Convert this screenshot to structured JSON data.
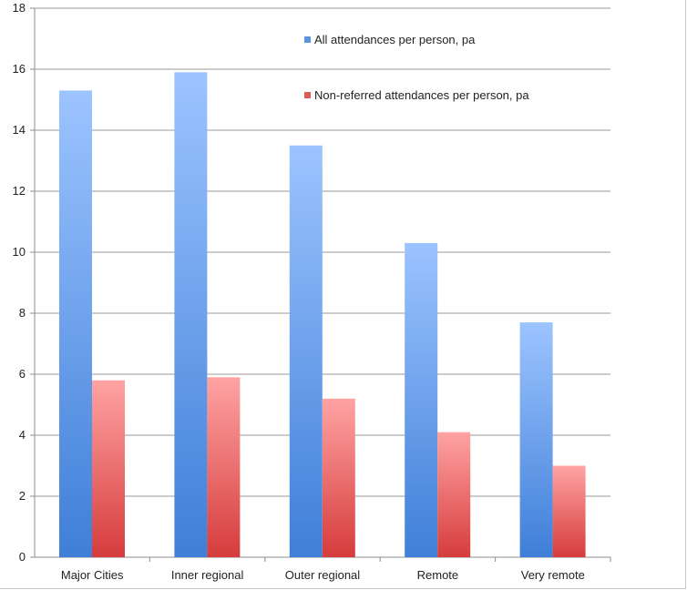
{
  "chart_data": {
    "type": "bar",
    "categories": [
      "Major Cities",
      "Inner regional",
      "Outer regional",
      "Remote",
      "Very remote"
    ],
    "series": [
      {
        "name": "All attendances per person, pa",
        "values": [
          15.3,
          15.9,
          13.5,
          10.3,
          7.7
        ],
        "color": "#5b95e0"
      },
      {
        "name": "Non-referred attendances per person, pa",
        "values": [
          5.8,
          5.9,
          5.2,
          4.1,
          3.0
        ],
        "color": "#e05a5a"
      }
    ],
    "yticks": [
      0,
      2,
      4,
      6,
      8,
      10,
      12,
      14,
      16,
      18
    ],
    "ylim": [
      0,
      18
    ],
    "grid": true,
    "legend": "top-center"
  }
}
